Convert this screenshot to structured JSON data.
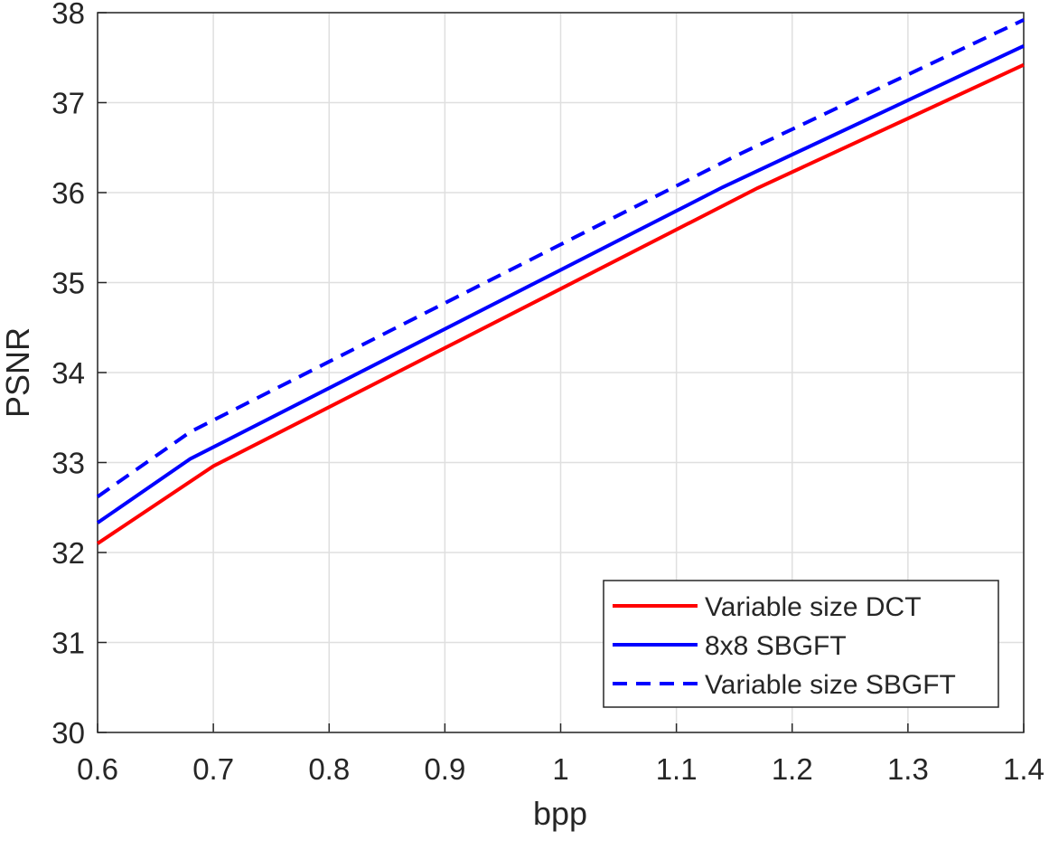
{
  "chart_data": {
    "type": "line",
    "xlabel": "bpp",
    "ylabel": "PSNR",
    "xlim": [
      0.6,
      1.4
    ],
    "ylim": [
      30,
      38
    ],
    "xticks": [
      0.6,
      0.7,
      0.8,
      0.9,
      1,
      1.1,
      1.2,
      1.3,
      1.4
    ],
    "yticks": [
      30,
      31,
      32,
      33,
      34,
      35,
      36,
      37,
      38
    ],
    "grid": true,
    "legend": "southeast",
    "series": [
      {
        "name": "Variable size DCT",
        "color": "#ff0000",
        "dash": false,
        "x": [
          0.6,
          0.7,
          1.0,
          1.17,
          1.4
        ],
        "values": [
          32.1,
          32.96,
          34.93,
          36.05,
          37.42
        ]
      },
      {
        "name": "8x8 SBGFT",
        "color": "#0000ff",
        "dash": false,
        "x": [
          0.6,
          0.68,
          1.14,
          1.4
        ],
        "values": [
          32.33,
          33.04,
          36.06,
          37.63
        ]
      },
      {
        "name": "Variable size SBGFT",
        "color": "#0000ff",
        "dash": true,
        "x": [
          0.6,
          0.68,
          1.15,
          1.4
        ],
        "values": [
          32.62,
          33.34,
          36.4,
          37.92
        ]
      }
    ]
  }
}
